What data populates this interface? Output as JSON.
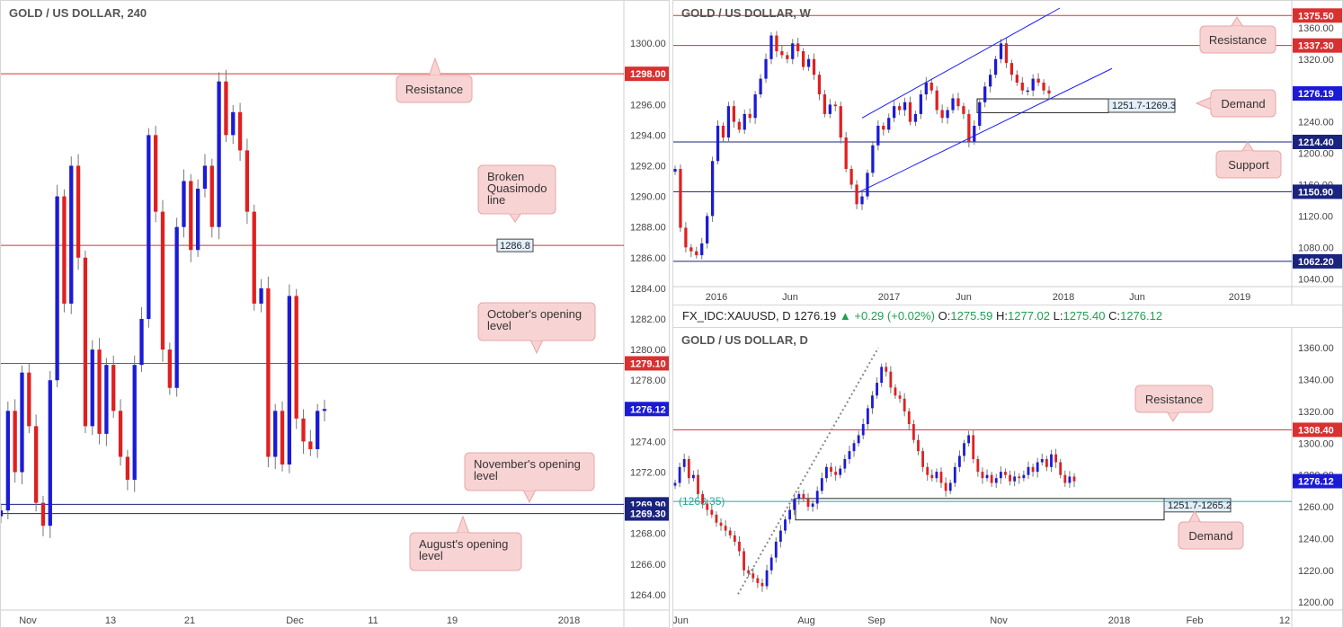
{
  "chart_data": [
    {
      "id": "h4",
      "type": "candlestick",
      "title": "GOLD / US DOLLAR, 240",
      "ylim": [
        1263,
        1301
      ],
      "y_ticks": [
        1264,
        1266,
        1268,
        1270,
        1272,
        1274,
        1276,
        1278,
        1280,
        1282,
        1284,
        1286,
        1288,
        1290,
        1292,
        1294,
        1296,
        1298,
        1300
      ],
      "x_ticks": [
        "Nov",
        "13",
        "21",
        "Dec",
        "11",
        "19",
        "2018"
      ],
      "levels": [
        {
          "value": 1298.0,
          "label": "1298.00",
          "color": "#d93030"
        },
        {
          "value": 1286.8,
          "label": "",
          "color": "#d93030"
        },
        {
          "value": 1279.1,
          "label": "1279.10",
          "color": "#d93030"
        },
        {
          "value": 1269.9,
          "label": "1269.90",
          "color": "#1a237e"
        },
        {
          "value": 1269.3,
          "label": "1269.30",
          "color": "#1a237e"
        }
      ],
      "last_price": {
        "value": 1276.12,
        "label": "1276.12"
      },
      "callouts": [
        {
          "id": "resistance",
          "text": [
            "Resistance"
          ]
        },
        {
          "id": "broken-qm",
          "text": [
            "Broken",
            "Quasimodo",
            "line"
          ]
        },
        {
          "id": "october-open",
          "text": [
            "October's opening",
            "level"
          ]
        },
        {
          "id": "november-open",
          "text": [
            "November's opening",
            "level"
          ]
        },
        {
          "id": "august-open",
          "text": [
            "August's opening",
            "level"
          ]
        }
      ],
      "price_boxes": [
        "1286.8"
      ],
      "series": [
        {
          "values": [
            1269.5,
            1276.0,
            1272.0,
            1278.5,
            1275.0,
            1270.0,
            1268.5,
            1278.0,
            1290.0,
            1283.0,
            1292.0,
            1286.0,
            1275.0,
            1280.0,
            1274.5,
            1279.0,
            1276.0,
            1273.0,
            1271.5,
            1279.0,
            1282.0,
            1294.0,
            1289.0,
            1280.0,
            1277.5,
            1288.0,
            1291.0,
            1286.5,
            1290.5,
            1292.0,
            1288.0,
            1297.5,
            1294.0,
            1295.5,
            1293.0,
            1289.0,
            1283.0,
            1284.0,
            1273.0,
            1276.0,
            1272.5,
            1283.5,
            1275.5,
            1274.0,
            1273.5,
            1276.0,
            1276.12
          ]
        }
      ]
    },
    {
      "id": "weekly",
      "type": "candlestick",
      "title": "GOLD / US DOLLAR, W",
      "ylim": [
        1030,
        1385
      ],
      "y_ticks": [
        1040,
        1080,
        1120,
        1160,
        1200,
        1240,
        1280,
        1320,
        1360
      ],
      "x_ticks": [
        "2016",
        "Jun",
        "2017",
        "Jun",
        "2018",
        "Jun",
        "2019"
      ],
      "levels": [
        {
          "value": 1375.5,
          "label": "1375.50",
          "color": "#d93030"
        },
        {
          "value": 1337.3,
          "label": "1337.30",
          "color": "#d93030"
        },
        {
          "value": 1214.4,
          "label": "1214.40",
          "color": "#1a237e"
        },
        {
          "value": 1150.9,
          "label": "1150.90",
          "color": "#1a237e"
        },
        {
          "value": 1062.2,
          "label": "1062.20",
          "color": "#1a237e"
        }
      ],
      "last_price": {
        "value": 1276.19,
        "label": "1276.19"
      },
      "callouts": [
        {
          "id": "resistance",
          "text": [
            "Resistance"
          ]
        },
        {
          "id": "demand",
          "text": [
            "Demand"
          ]
        },
        {
          "id": "support",
          "text": [
            "Support"
          ]
        }
      ],
      "zones": [
        {
          "low": 1251.7,
          "high": 1269.3,
          "label": "1251.7-1269.3"
        }
      ],
      "series": [
        {
          "values": [
            1180,
            1105,
            1080,
            1075,
            1070,
            1085,
            1120,
            1190,
            1235,
            1220,
            1260,
            1240,
            1230,
            1250,
            1245,
            1275,
            1295,
            1320,
            1350,
            1330,
            1325,
            1320,
            1340,
            1330,
            1310,
            1320,
            1300,
            1275,
            1250,
            1262,
            1260,
            1220,
            1180,
            1160,
            1135,
            1145,
            1175,
            1210,
            1235,
            1230,
            1245,
            1260,
            1255,
            1265,
            1240,
            1250,
            1275,
            1290,
            1280,
            1255,
            1245,
            1255,
            1270,
            1260,
            1250,
            1215,
            1235,
            1265,
            1285,
            1300,
            1320,
            1340,
            1315,
            1300,
            1290,
            1280,
            1280,
            1295,
            1290,
            1280,
            1276
          ]
        }
      ]
    },
    {
      "id": "daily",
      "type": "candlestick",
      "title": "GOLD / US DOLLAR, D",
      "ylim": [
        1195,
        1368
      ],
      "y_ticks": [
        1200,
        1220,
        1240,
        1260,
        1280,
        1300,
        1320,
        1340,
        1360
      ],
      "x_ticks": [
        "Jun",
        "Aug",
        "Sep",
        "Nov",
        "2018",
        "Feb",
        "12"
      ],
      "levels": [
        {
          "value": 1308.4,
          "label": "1308.40",
          "color": "#d93030"
        },
        {
          "value": 1263.35,
          "label": "(1263.35)",
          "color": "#26a69a"
        }
      ],
      "last_price": {
        "value": 1276.12,
        "label": "1276.12"
      },
      "callouts": [
        {
          "id": "resistance",
          "text": [
            "Resistance"
          ]
        },
        {
          "id": "demand",
          "text": [
            "Demand"
          ]
        }
      ],
      "zones": [
        {
          "low": 1251.7,
          "high": 1265.2,
          "label": "1251.7-1265.2"
        }
      ],
      "series": [
        {
          "values": [
            1275,
            1285,
            1290,
            1278,
            1280,
            1268,
            1262,
            1258,
            1255,
            1250,
            1248,
            1245,
            1242,
            1238,
            1232,
            1220,
            1218,
            1215,
            1212,
            1210,
            1220,
            1228,
            1238,
            1245,
            1252,
            1258,
            1265,
            1268,
            1265,
            1260,
            1262,
            1270,
            1278,
            1285,
            1282,
            1280,
            1284,
            1290,
            1295,
            1300,
            1305,
            1312,
            1322,
            1330,
            1338,
            1348,
            1345,
            1335,
            1330,
            1328,
            1320,
            1312,
            1302,
            1295,
            1285,
            1280,
            1278,
            1282,
            1275,
            1270,
            1275,
            1285,
            1292,
            1300,
            1305,
            1290,
            1282,
            1278,
            1280,
            1275,
            1278,
            1282,
            1280,
            1276,
            1279,
            1278,
            1280,
            1285,
            1282,
            1288,
            1290,
            1285,
            1293,
            1288,
            1280,
            1275,
            1279,
            1276
          ]
        }
      ]
    }
  ],
  "quote_bar": {
    "symbol": "FX_IDC:XAUUSD, D",
    "last": "1276.19",
    "change": "+0.29 (+0.02%)",
    "o_label": "O:",
    "o": "1275.59",
    "h_label": "H:",
    "h": "1277.02",
    "l_label": "L:",
    "l": "1275.40",
    "c_label": "C:",
    "c": "1276.12"
  }
}
